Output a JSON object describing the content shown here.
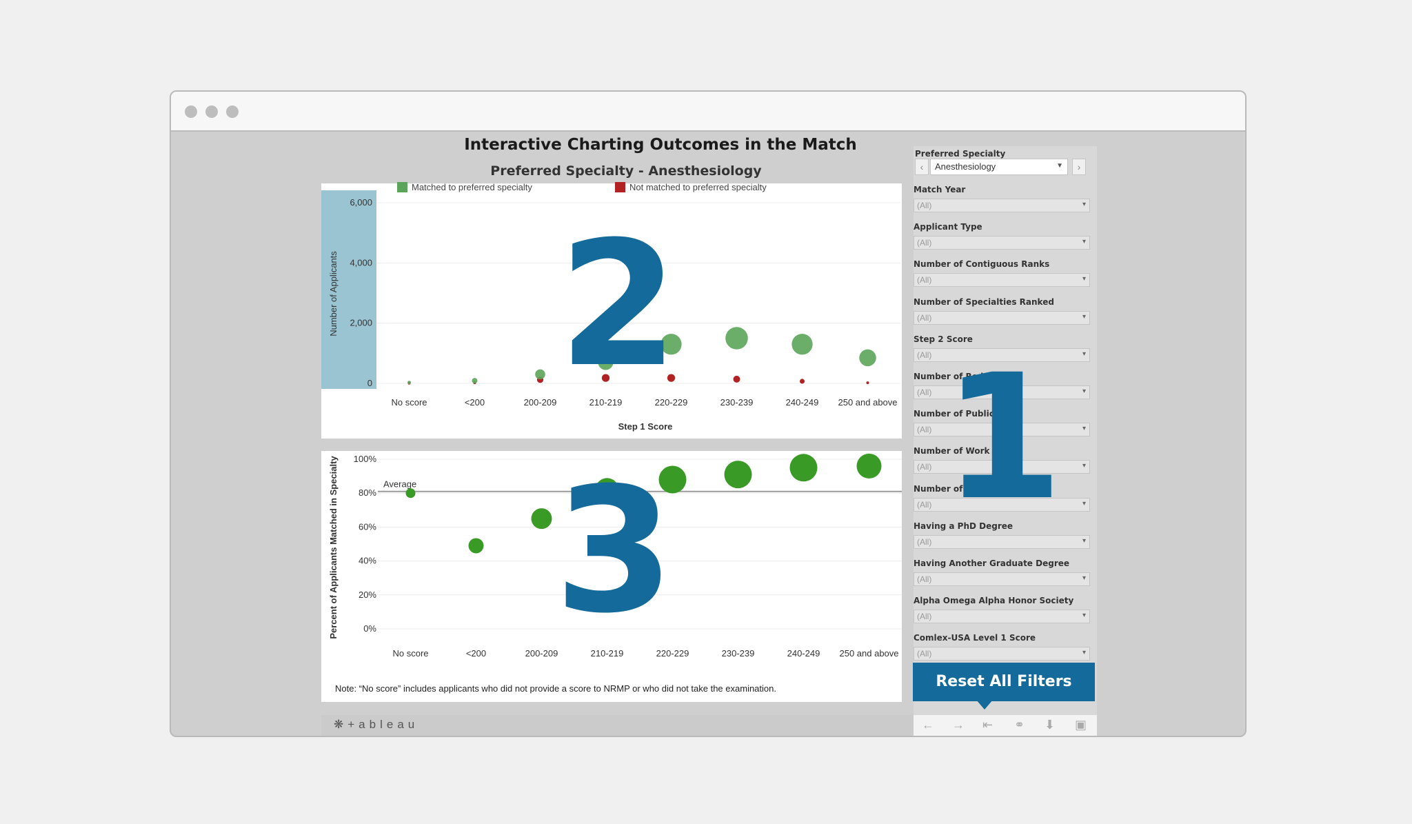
{
  "dashboard": {
    "title": "Interactive Charting Outcomes in the Match",
    "subtitle": "Preferred Specialty - Anesthesiology",
    "note": "Note: “No score” includes applicants who did not provide a score to NRMP or who did not take the examination."
  },
  "callouts": {
    "one": "1",
    "two": "2",
    "three": "3"
  },
  "colors": {
    "matched": "#5aa55a",
    "not_matched": "#b22222",
    "percent": "#3a9a26",
    "callout": "#146a9a",
    "y_axis_highlight": "#9ac4d2"
  },
  "legend": {
    "matched": "Matched to preferred specialty",
    "not_matched": "Not matched to preferred specialty"
  },
  "chart_data": [
    {
      "type": "scatter",
      "title": "Preferred Specialty - Anesthesiology",
      "xlabel": "Step 1 Score",
      "ylabel": "Number of Applicants",
      "categories": [
        "No score",
        "<200",
        "200-209",
        "210-219",
        "220-229",
        "230-239",
        "240-249",
        "250 and above"
      ],
      "yticks": [
        "6,000",
        "4,000",
        "2,000",
        "0"
      ],
      "ylim": [
        0,
        6000
      ],
      "series": [
        {
          "name": "Matched to preferred specialty",
          "values": [
            30,
            90,
            300,
            700,
            1300,
            1500,
            1300,
            850
          ]
        },
        {
          "name": "Not matched to preferred specialty",
          "values": [
            5,
            20,
            120,
            180,
            180,
            140,
            70,
            20
          ]
        }
      ]
    },
    {
      "type": "scatter",
      "xlabel": "",
      "ylabel": "Percent of Applicants Matched in Specialty",
      "categories": [
        "No score",
        "<200",
        "200-209",
        "210-219",
        "220-229",
        "230-239",
        "240-249",
        "250 and above"
      ],
      "yticks": [
        "100%",
        "80%",
        "60%",
        "40%",
        "20%",
        "0%"
      ],
      "ylim": [
        0,
        100
      ],
      "average_label": "Average",
      "average": 81,
      "values": [
        80,
        49,
        65,
        82,
        88,
        91,
        95,
        96
      ]
    }
  ],
  "filters": {
    "preferred_specialty": {
      "label": "Preferred Specialty",
      "value": "Anesthesiology"
    },
    "items": [
      {
        "label": "Match Year",
        "value": "(All)"
      },
      {
        "label": "Applicant Type",
        "value": "(All)"
      },
      {
        "label": "Number of Contiguous Ranks",
        "value": "(All)"
      },
      {
        "label": "Number of Specialties Ranked",
        "value": "(All)"
      },
      {
        "label": "Step 2 Score",
        "value": "(All)"
      },
      {
        "label": "Number of Re",
        "label_tail": "iences",
        "value": "(All)"
      },
      {
        "label": "Number of Publicati",
        "label_tail": "",
        "value": "(All)"
      },
      {
        "label": "Number of Work Exp",
        "label_tail": "es",
        "value": "(All)"
      },
      {
        "label": "Number of V",
        "label_tail": "s",
        "value": "(All)"
      },
      {
        "label": "Having a PhD Degree",
        "value": "(All)"
      },
      {
        "label": "Having Another Graduate Degree",
        "value": "(All)"
      },
      {
        "label": "Alpha Omega Alpha Honor Society",
        "value": "(All)"
      },
      {
        "label": "Comlex-USA Level 1 Score",
        "value": "(All)"
      }
    ],
    "reset_label": "Reset All Filters"
  },
  "footer": {
    "brand": "+ableau"
  }
}
